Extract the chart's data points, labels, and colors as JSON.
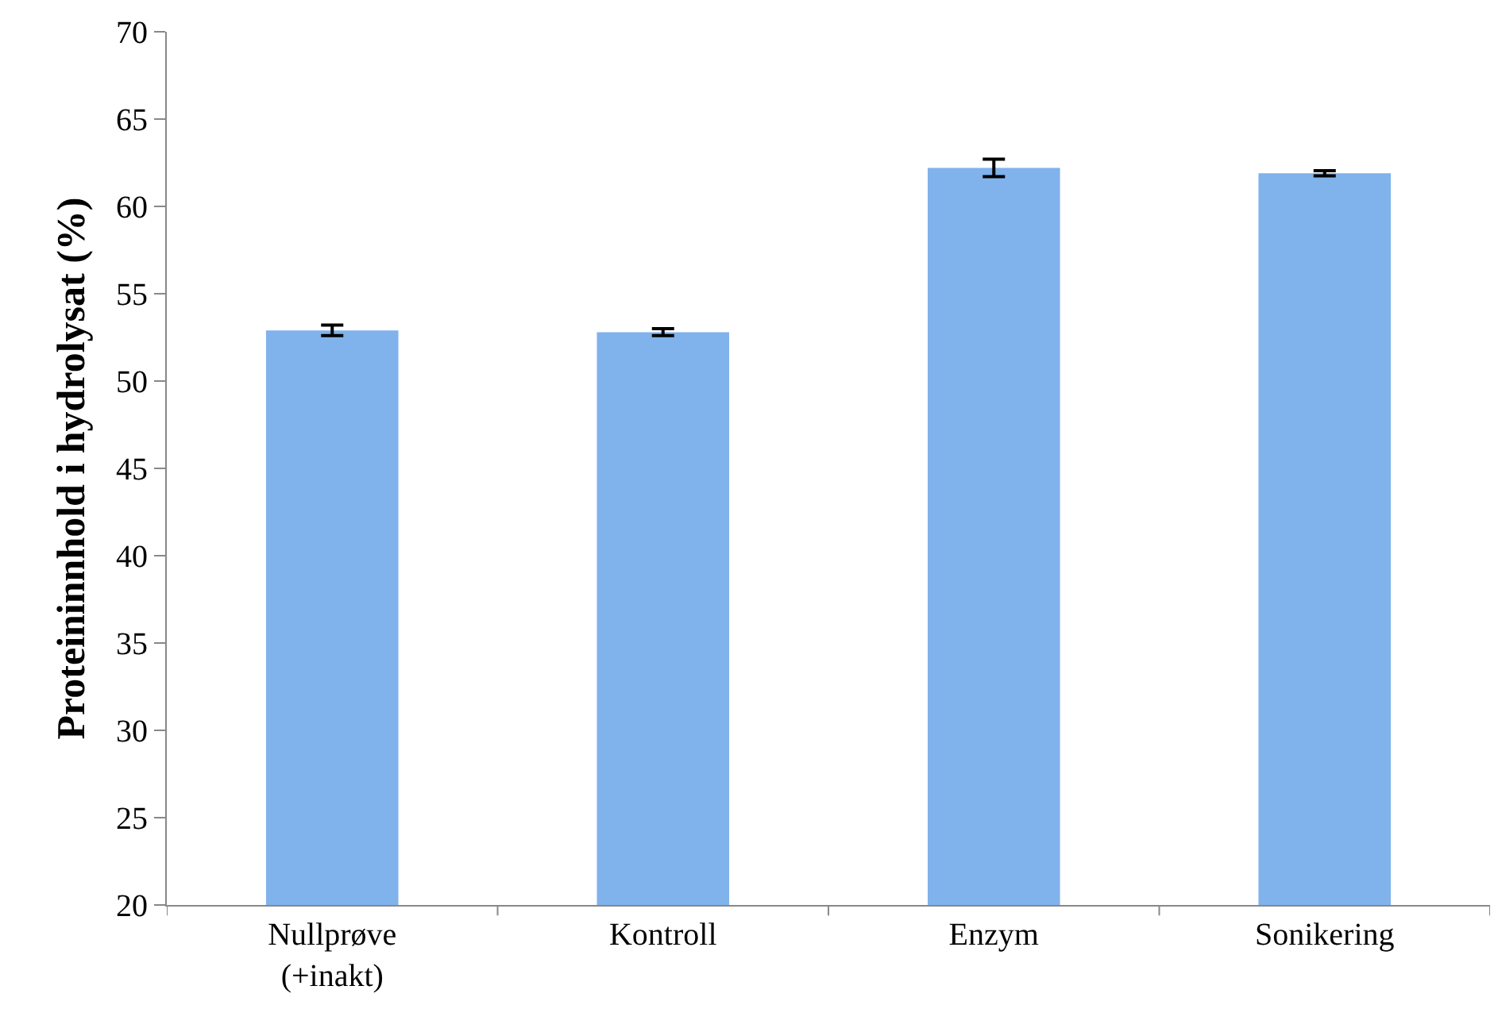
{
  "chart_data": {
    "type": "bar",
    "ylabel": "Proteininnhold i hydrolysat (%)",
    "categories": [
      "Nullprøve\n(+inakt)",
      "Kontroll",
      "Enzym",
      "Sonikering"
    ],
    "values": [
      52.9,
      52.8,
      62.2,
      61.9
    ],
    "errors": [
      0.3,
      0.2,
      0.5,
      0.15
    ],
    "color": "#80b2ec",
    "ylim": [
      20,
      70
    ],
    "yticks": [
      20,
      25,
      30,
      35,
      40,
      45,
      50,
      55,
      60,
      65,
      70
    ],
    "grid": false
  }
}
